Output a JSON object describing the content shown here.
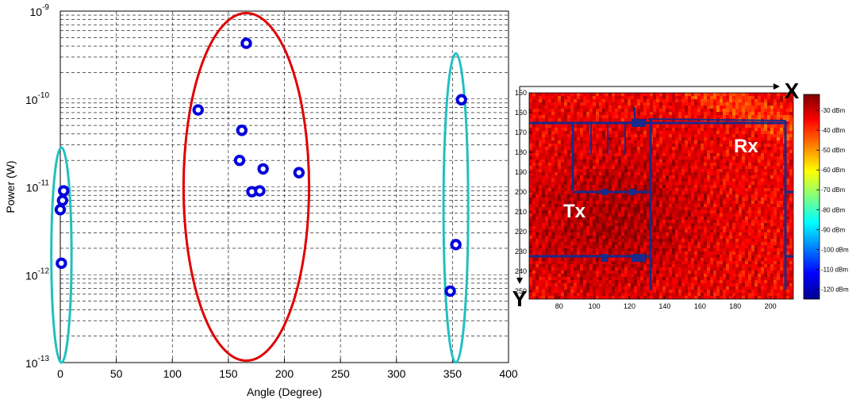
{
  "chart_data": [
    {
      "type": "scatter",
      "xlabel": "Angle (Degree)",
      "ylabel": "Power (W)",
      "xlim": [
        0,
        400
      ],
      "ylim": [
        1e-13,
        1e-09
      ],
      "yscale": "log",
      "grid": true,
      "x_ticks": [
        "0",
        "50",
        "100",
        "150",
        "200",
        "250",
        "300",
        "350",
        "400"
      ],
      "y_ticks": [
        {
          "base": "10",
          "exp": "-13",
          "value": 1e-13
        },
        {
          "base": "10",
          "exp": "-12",
          "value": 1e-12
        },
        {
          "base": "10",
          "exp": "-11",
          "value": 1e-11
        },
        {
          "base": "10",
          "exp": "-10",
          "value": 1e-10
        },
        {
          "base": "10",
          "exp": "-9",
          "value": 1e-09
        }
      ],
      "marker_color": "#0000dd",
      "points": [
        {
          "x": 1,
          "y": 1.35e-12
        },
        {
          "x": 0,
          "y": 5.5e-12
        },
        {
          "x": 2,
          "y": 7e-12
        },
        {
          "x": 3,
          "y": 9e-12
        },
        {
          "x": 123,
          "y": 7.5e-11
        },
        {
          "x": 160,
          "y": 2e-11
        },
        {
          "x": 162,
          "y": 4.4e-11
        },
        {
          "x": 166,
          "y": 4.3e-10
        },
        {
          "x": 171,
          "y": 8.8e-12
        },
        {
          "x": 178,
          "y": 9e-12
        },
        {
          "x": 181,
          "y": 1.6e-11
        },
        {
          "x": 213,
          "y": 1.45e-11
        },
        {
          "x": 348,
          "y": 6.5e-13
        },
        {
          "x": 353,
          "y": 2.2e-12
        },
        {
          "x": 358,
          "y": 9.8e-11
        }
      ],
      "clusters": [
        {
          "color": "#20c0c0",
          "x_range": [
            -8,
            10
          ],
          "y_range": [
            1e-13,
            2.8e-11
          ]
        },
        {
          "color": "#e00000",
          "x_range": [
            110,
            222
          ],
          "y_range": [
            1.05e-13,
            9.5e-10
          ]
        },
        {
          "color": "#20c0c0",
          "x_range": [
            342,
            364
          ],
          "y_range": [
            1e-13,
            3.3e-10
          ]
        }
      ]
    },
    {
      "type": "heatmap",
      "x_ticks": [
        "80",
        "100",
        "120",
        "140",
        "160",
        "180",
        "200"
      ],
      "y_ticks": [
        "150",
        "160",
        "170",
        "180",
        "190",
        "200",
        "210",
        "220",
        "230",
        "240",
        "250"
      ],
      "xlim": [
        63,
        213
      ],
      "ylim": [
        150,
        254
      ],
      "colorbar_ticks": [
        "-30 dBm",
        "-40 dBm",
        "-50 dBm",
        "-60 dBm",
        "-70 dBm",
        "-80 dBm",
        "-90 dBm",
        "-100 dBm",
        "-110 dBm",
        "-120 dBm"
      ],
      "colorbar_range": [
        -125,
        -22
      ],
      "colormap": [
        "#00008f",
        "#0000ff",
        "#0080ff",
        "#00ffff",
        "#80ff80",
        "#ffff00",
        "#ff8000",
        "#ff0000",
        "#800000"
      ],
      "axis_x_label": "X",
      "axis_y_label": "Y",
      "tx_label": "Tx",
      "rx_label": "Rx"
    }
  ]
}
